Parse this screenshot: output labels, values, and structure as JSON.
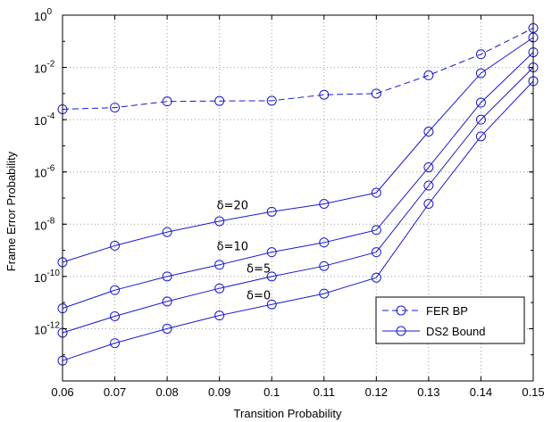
{
  "chart_data": {
    "type": "line",
    "xlabel": "Transition Probability",
    "ylabel": "Frame Error Probability",
    "xlim": [
      0.06,
      0.15
    ],
    "ylim_exponent": [
      -14,
      0
    ],
    "yscale": "log",
    "grid": true,
    "legend_position": "bottom-right",
    "x_ticks": [
      "0.06",
      "0.07",
      "0.08",
      "0.09",
      "0.1",
      "0.11",
      "0.12",
      "0.13",
      "0.14",
      "0.15"
    ],
    "y_ticks": [
      {
        "base": "10",
        "exp": "0",
        "value_exp": 0
      },
      {
        "base": "10",
        "exp": "-2",
        "value_exp": -2
      },
      {
        "base": "10",
        "exp": "-4",
        "value_exp": -4
      },
      {
        "base": "10",
        "exp": "-6",
        "value_exp": -6
      },
      {
        "base": "10",
        "exp": "-8",
        "value_exp": -8
      },
      {
        "base": "10",
        "exp": "-10",
        "value_exp": -10
      },
      {
        "base": "10",
        "exp": "-12",
        "value_exp": -12
      }
    ],
    "x": [
      0.06,
      0.07,
      0.08,
      0.09,
      0.1,
      0.11,
      0.12,
      0.13,
      0.14,
      0.15
    ],
    "series": [
      {
        "name": "FER BP",
        "style": "dashed",
        "annotation": "",
        "values": [
          0.00025,
          0.00029,
          0.0005,
          0.00052,
          0.00053,
          0.0009,
          0.001,
          0.005,
          0.032,
          0.32
        ]
      },
      {
        "name": "DS2 Bound",
        "style": "solid",
        "annotation": "δ=20",
        "values": [
          3.5e-10,
          1.5e-09,
          5e-09,
          1.3e-08,
          3e-08,
          6e-08,
          1.6e-07,
          3.5e-05,
          0.006,
          0.14
        ]
      },
      {
        "name": "",
        "style": "solid",
        "annotation": "δ=10",
        "values": [
          6e-12,
          3e-11,
          1e-10,
          2.8e-10,
          8.5e-10,
          2e-09,
          6e-09,
          1.5e-06,
          0.00045,
          0.038
        ]
      },
      {
        "name": "",
        "style": "solid",
        "annotation": "δ=5",
        "values": [
          7e-13,
          3e-12,
          1.1e-11,
          3.5e-11,
          1e-10,
          2.5e-10,
          8.5e-10,
          3e-07,
          0.0001,
          0.01
        ]
      },
      {
        "name": "",
        "style": "solid",
        "annotation": "δ=0",
        "values": [
          6e-14,
          2.8e-13,
          1e-12,
          3.2e-12,
          8.5e-12,
          2.2e-11,
          9e-11,
          6e-08,
          2.3e-05,
          0.003
        ]
      }
    ],
    "annotations": [
      "δ=20",
      "δ=10",
      "δ=5",
      "δ=0"
    ],
    "colors": {
      "line": "#1a1acc",
      "grid": "#999999",
      "axis": "#000000"
    }
  }
}
